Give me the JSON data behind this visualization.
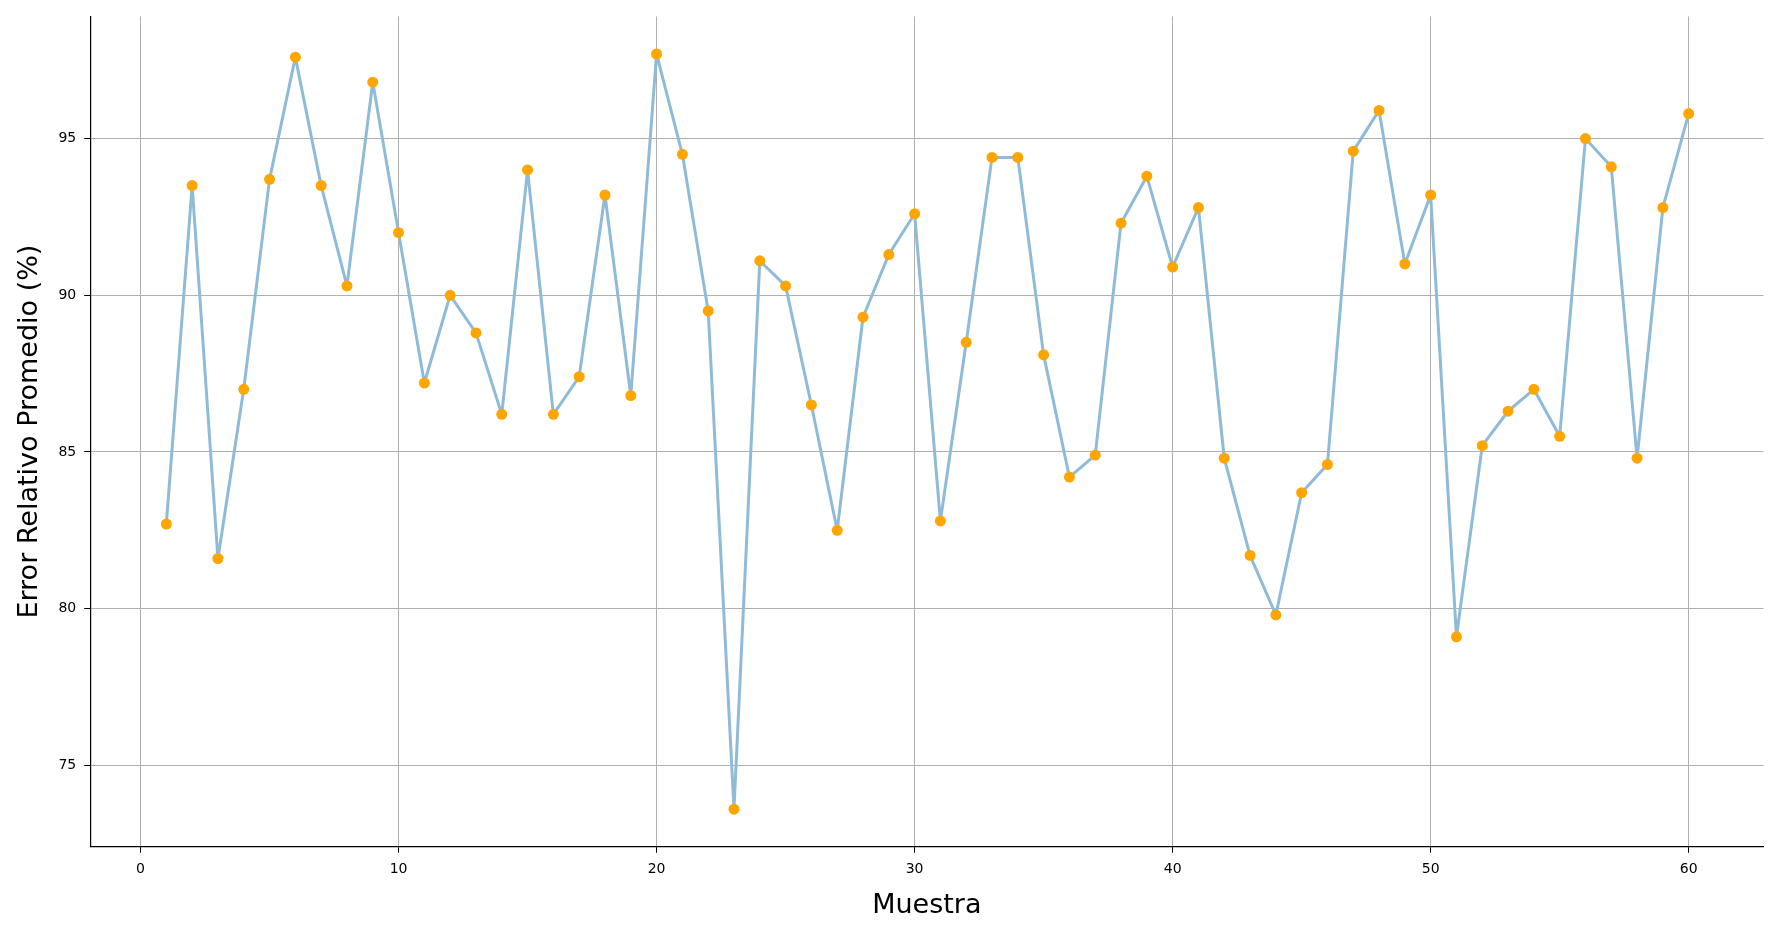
{
  "chart_data": {
    "type": "line",
    "xlabel": "Muestra",
    "ylabel": "Error Relativo Promedio (%)",
    "x": [
      1,
      2,
      3,
      4,
      5,
      6,
      7,
      8,
      9,
      10,
      11,
      12,
      13,
      14,
      15,
      16,
      17,
      18,
      19,
      20,
      21,
      22,
      23,
      24,
      25,
      26,
      27,
      28,
      29,
      30,
      31,
      32,
      33,
      34,
      35,
      36,
      37,
      38,
      39,
      40,
      41,
      42,
      43,
      44,
      45,
      46,
      47,
      48,
      49,
      50,
      51,
      52,
      53,
      54,
      55,
      56,
      57,
      58,
      59,
      60
    ],
    "series": [
      {
        "color": "#8fbbd9",
        "colors": [
          "#ffa500",
          "#ffa500",
          "#ffa500",
          "#ffa500",
          "#ffa500",
          "#ffa500",
          "#ffa500",
          "#ffa500",
          "#ffa500",
          "#ffa500",
          "#ffa500",
          "#ffa500",
          "#ffa500",
          "#ffa500",
          "#ffa500",
          "#ffa500",
          "#ffa500",
          "#ffa500",
          "#ffa500",
          "#ffa500",
          "#ffa500",
          "#ffa500",
          "#ffa500",
          "#ffa500",
          "#ffa500",
          "#ffa500",
          "#ffa500",
          "#ffa500",
          "#ffa500",
          "#ffa500",
          "#ffa500",
          "#ffa500",
          "#ffa500",
          "#ffa500",
          "#ffa500",
          "#ffa500",
          "#ffa500",
          "#ffa500",
          "#ffa500",
          "#ffa500",
          "#ffa500",
          "#ffa500",
          "#ffa500",
          "#ffa500",
          "#ffa500",
          "#ffa500",
          "#ffa500",
          "#ffa500",
          "#ffa500",
          "#ffa500",
          "#ffa500",
          "#ffa500",
          "#ffa500",
          "#ffa500",
          "#ffa500",
          "#ffa500",
          "#ffa500",
          "#ffa500",
          "#ffa500",
          "#ffa500"
        ],
        "values": [
          82.7,
          93.5,
          81.6,
          87.0,
          93.7,
          97.6,
          93.5,
          90.3,
          96.8,
          92.0,
          87.2,
          90.0,
          88.8,
          86.2,
          94.0,
          86.2,
          87.4,
          93.2,
          86.8,
          97.7,
          94.5,
          89.5,
          73.6,
          91.1,
          90.3,
          86.5,
          82.5,
          89.3,
          91.3,
          92.6,
          82.8,
          88.5,
          94.4,
          94.4,
          88.1,
          84.2,
          84.9,
          92.3,
          93.8,
          90.9,
          92.8,
          84.8,
          81.7,
          79.8,
          83.7,
          84.6,
          94.6,
          95.9,
          91.0,
          93.2,
          79.1,
          85.2,
          86.3,
          87.0,
          85.5,
          95.0,
          94.1,
          84.8,
          92.8,
          95.8
        ]
      }
    ],
    "xlim": [
      -1.95,
      62.9
    ],
    "xticks": [
      0,
      10,
      20,
      30,
      40,
      50,
      60
    ],
    "ylim": [
      72.4,
      98.9
    ],
    "yticks": [
      75,
      80,
      85,
      90,
      95
    ],
    "grid": true,
    "legend": false,
    "marker": "circle",
    "line_style": "solid"
  }
}
